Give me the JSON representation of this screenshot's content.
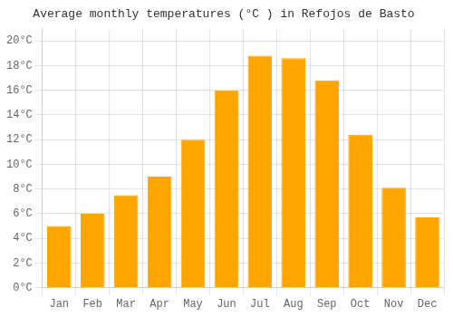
{
  "chart_data": {
    "type": "bar",
    "title": "Average monthly temperatures (°C ) in Refojos de Basto",
    "categories": [
      "Jan",
      "Feb",
      "Mar",
      "Apr",
      "May",
      "Jun",
      "Jul",
      "Aug",
      "Sep",
      "Oct",
      "Nov",
      "Dec"
    ],
    "values": [
      5.0,
      6.0,
      7.5,
      9.0,
      12.0,
      16.0,
      18.8,
      18.6,
      16.8,
      12.4,
      8.1,
      5.7
    ],
    "color": "#FFA500",
    "ylim": [
      0,
      21
    ],
    "yticks": [
      {
        "value": 0,
        "label": "0°C"
      },
      {
        "value": 2,
        "label": "2°C"
      },
      {
        "value": 4,
        "label": "4°C"
      },
      {
        "value": 6,
        "label": "6°C"
      },
      {
        "value": 8,
        "label": "8°C"
      },
      {
        "value": 10,
        "label": "10°C"
      },
      {
        "value": 12,
        "label": "12°C"
      },
      {
        "value": 14,
        "label": "14°C"
      },
      {
        "value": 16,
        "label": "16°C"
      },
      {
        "value": 18,
        "label": "18°C"
      },
      {
        "value": 20,
        "label": "20°C"
      }
    ],
    "grid": true
  }
}
